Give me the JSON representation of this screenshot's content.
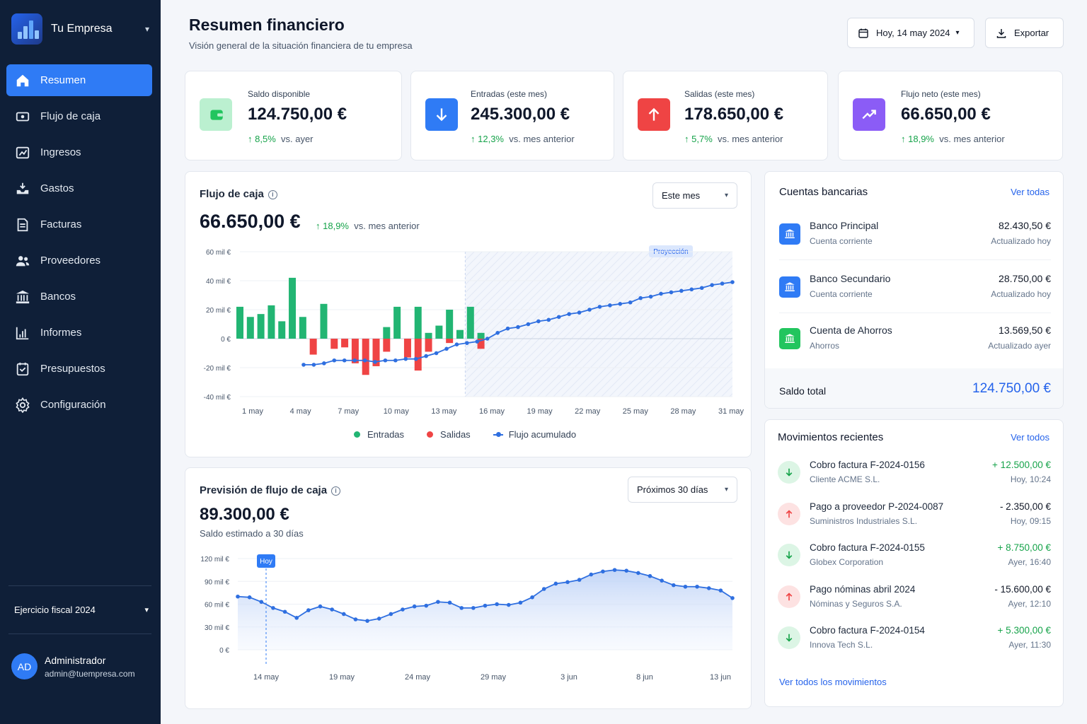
{
  "sidebar": {
    "company": "Tu Empresa",
    "nav": [
      {
        "label": "Resumen",
        "icon": "home-icon"
      },
      {
        "label": "Flujo de caja",
        "icon": "cash-flow-icon"
      },
      {
        "label": "Ingresos",
        "icon": "income-icon"
      },
      {
        "label": "Gastos",
        "icon": "expenses-icon"
      },
      {
        "label": "Facturas",
        "icon": "invoice-icon"
      },
      {
        "label": "Proveedores",
        "icon": "users-icon"
      },
      {
        "label": "Bancos",
        "icon": "bank-icon"
      },
      {
        "label": "Informes",
        "icon": "bar-chart-icon"
      },
      {
        "label": "Presupuestos",
        "icon": "budget-icon"
      },
      {
        "label": "Configuración",
        "icon": "gear-icon"
      }
    ],
    "fiscal_year": "Ejercicio fiscal 2024",
    "user": {
      "initials": "AD",
      "name": "Administrador",
      "email": "admin@tuempresa.com"
    }
  },
  "header": {
    "title": "Resumen financiero",
    "subtitle": "Visión general de la situación financiera de tu empresa",
    "date_label": "Hoy, 14 may 2024",
    "export_label": "Exportar"
  },
  "kpis": [
    {
      "label": "Saldo disponible",
      "value": "124.750,00 €",
      "delta": "8,5%",
      "compare": "vs. ayer",
      "color": "#22c55e"
    },
    {
      "label": "Entradas (este mes)",
      "value": "245.300,00 €",
      "delta": "12,3%",
      "compare": "vs. mes anterior",
      "color": "#2f7bf5"
    },
    {
      "label": "Salidas (este mes)",
      "value": "178.650,00 €",
      "delta": "5,7%",
      "compare": "vs. mes anterior",
      "color": "#ef4444"
    },
    {
      "label": "Flujo neto (este mes)",
      "value": "66.650,00 €",
      "delta": "18,9%",
      "compare": "vs. mes anterior",
      "color": "#8b5cf6"
    }
  ],
  "cashflow": {
    "title": "Flujo de caja",
    "period": "Este mes",
    "value": "66.650,00 €",
    "delta": "18,9%",
    "compare": "vs. mes anterior",
    "projection_label": "Proyección",
    "legend": [
      "Entradas",
      "Salidas",
      "Flujo acumulado"
    ]
  },
  "forecast": {
    "title": "Previsión de flujo de caja",
    "period": "Próximos 30 días",
    "value": "89.300,00 €",
    "subtitle": "Saldo estimado a 30 días",
    "today_label": "Hoy"
  },
  "accounts": {
    "title": "Cuentas bancarias",
    "link": "Ver todas",
    "items": [
      {
        "name": "Banco Principal",
        "type": "Cuenta corriente",
        "amount": "82.430,50 €",
        "updated": "Actualizado hoy",
        "color": "#2f7bf5"
      },
      {
        "name": "Banco Secundario",
        "type": "Cuenta corriente",
        "amount": "28.750,00 €",
        "updated": "Actualizado hoy",
        "color": "#2f7bf5"
      },
      {
        "name": "Cuenta de Ahorros",
        "type": "Ahorros",
        "amount": "13.569,50 €",
        "updated": "Actualizado ayer",
        "color": "#22c55e"
      }
    ],
    "total_label": "Saldo total",
    "total_value": "124.750,00 €"
  },
  "movements": {
    "title": "Movimientos recientes",
    "link": "Ver todos",
    "items": [
      {
        "title": "Cobro factura F-2024-0156",
        "sub": "Cliente ACME S.L.",
        "amount": "+ 12.500,00 €",
        "time": "Hoy, 10:24",
        "direction": "in"
      },
      {
        "title": "Pago a proveedor P-2024-0087",
        "sub": "Suministros Industriales S.L.",
        "amount": "- 2.350,00 €",
        "time": "Hoy, 09:15",
        "direction": "out"
      },
      {
        "title": "Cobro factura F-2024-0155",
        "sub": "Globex Corporation",
        "amount": "+ 8.750,00 €",
        "time": "Ayer, 16:40",
        "direction": "in"
      },
      {
        "title": "Pago nóminas abril 2024",
        "sub": "Nóminas y Seguros S.A.",
        "amount": "- 15.600,00 €",
        "time": "Ayer, 12:10",
        "direction": "out"
      },
      {
        "title": "Cobro factura F-2024-0154",
        "sub": "Innova Tech S.L.",
        "amount": "+ 5.300,00 €",
        "time": "Ayer, 11:30",
        "direction": "in"
      }
    ],
    "footer_link": "Ver todos los movimientos"
  },
  "chart_data": [
    {
      "type": "bar",
      "title": "Flujo de caja",
      "x_ticks": [
        "1 may",
        "4 may",
        "7 may",
        "10 may",
        "13 may",
        "16 may",
        "19 may",
        "22 may",
        "25 may",
        "28 may",
        "31 may"
      ],
      "y_ticks": [
        "60 mil €",
        "40 mil €",
        "20 mil €",
        "0 €",
        "-20 mil €",
        "-40 mil €"
      ],
      "ylim": [
        -40,
        60
      ],
      "projection_from_day": 22.5,
      "series": [
        {
          "name": "Entradas",
          "color": "#22b573",
          "points": [
            [
              1,
              22
            ],
            [
              2,
              15
            ],
            [
              3,
              17
            ],
            [
              4,
              23
            ],
            [
              5,
              12
            ],
            [
              6,
              42
            ],
            [
              7,
              15
            ],
            [
              9,
              24
            ],
            [
              15,
              8
            ],
            [
              16,
              22
            ],
            [
              18,
              22
            ],
            [
              19,
              4
            ],
            [
              20,
              9
            ],
            [
              21,
              20
            ],
            [
              22,
              6
            ],
            [
              23,
              22
            ],
            [
              24,
              4
            ]
          ]
        },
        {
          "name": "Salidas",
          "color": "#ef4444",
          "points": [
            [
              8,
              -11
            ],
            [
              10,
              -7
            ],
            [
              11,
              -6
            ],
            [
              12,
              -17
            ],
            [
              13,
              -25
            ],
            [
              14,
              -19
            ],
            [
              15,
              -9
            ],
            [
              17,
              -13
            ],
            [
              18,
              -22
            ],
            [
              19,
              -9
            ],
            [
              21,
              -3
            ],
            [
              24,
              -7
            ]
          ]
        },
        {
          "name": "Flujo acumulado",
          "color": "#2f6fe0",
          "points": [
            [
              6,
              -18
            ],
            [
              7,
              -18
            ],
            [
              8,
              -17
            ],
            [
              9,
              -15
            ],
            [
              10,
              -15
            ],
            [
              11,
              -15
            ],
            [
              12,
              -15
            ],
            [
              13,
              -16
            ],
            [
              14,
              -15
            ],
            [
              15,
              -15
            ],
            [
              16,
              -14
            ],
            [
              17,
              -14
            ],
            [
              18,
              -12
            ],
            [
              19,
              -10
            ],
            [
              20,
              -7
            ],
            [
              21,
              -4
            ],
            [
              22,
              -3
            ],
            [
              23,
              -2
            ],
            [
              24,
              0
            ],
            [
              25,
              4
            ],
            [
              26,
              7
            ],
            [
              27,
              8
            ],
            [
              28,
              10
            ],
            [
              29,
              12
            ],
            [
              30,
              13
            ],
            [
              31,
              15
            ],
            [
              32,
              17
            ],
            [
              33,
              18
            ],
            [
              34,
              20
            ],
            [
              35,
              22
            ],
            [
              36,
              23
            ],
            [
              37,
              24
            ],
            [
              38,
              25
            ],
            [
              39,
              28
            ],
            [
              40,
              29
            ],
            [
              41,
              31
            ],
            [
              42,
              32
            ],
            [
              43,
              33
            ],
            [
              44,
              34
            ],
            [
              45,
              35
            ],
            [
              46,
              37
            ],
            [
              47,
              38
            ],
            [
              48,
              39
            ]
          ]
        }
      ]
    },
    {
      "type": "area",
      "title": "Previsión de flujo de caja",
      "x_ticks": [
        "14 may",
        "19 may",
        "24 may",
        "29 may",
        "3 jun",
        "8 jun",
        "13 jun"
      ],
      "y_ticks": [
        "120 mil €",
        "90 mil €",
        "60 mil €",
        "30 mil €",
        "0 €"
      ],
      "ylim": [
        0,
        120
      ],
      "series": [
        {
          "name": "Saldo estimado",
          "color": "#2f6fe0",
          "values": [
            70,
            69,
            63,
            55,
            50,
            42,
            52,
            57,
            53,
            47,
            40,
            38,
            41,
            47,
            53,
            57,
            58,
            63,
            62,
            55,
            55,
            58,
            60,
            59,
            62,
            69,
            80,
            87,
            89,
            92,
            99,
            103,
            105,
            104,
            101,
            97,
            91,
            85,
            83,
            83,
            81,
            78,
            68
          ]
        }
      ]
    }
  ]
}
